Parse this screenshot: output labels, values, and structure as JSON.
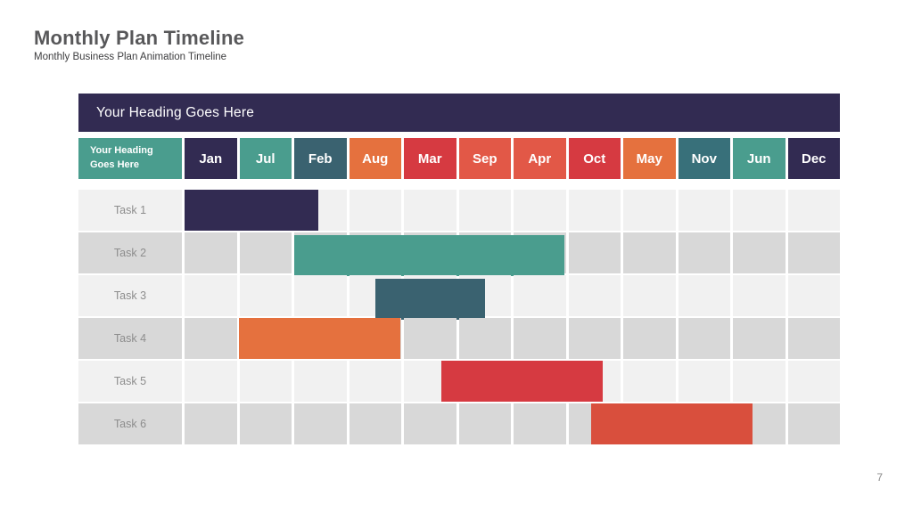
{
  "slide": {
    "title": "Monthly Plan Timeline",
    "subtitle": "Monthly Business Plan Animation Timeline",
    "page_number": "7"
  },
  "colors": {
    "navy": "#322b52",
    "teal": "#4a9d8e",
    "slate_blue": "#3a6270",
    "dark_teal": "#38707a",
    "orange": "#e5713e",
    "red": "#d63a41",
    "orange_red": "#e25847",
    "bar_orange_red": "#d94f3d",
    "row_odd_bg": "#f1f1f1",
    "row_even_bg": "#d8d8d8",
    "title_text": "#58585a",
    "task_label_text": "#8d8d8d"
  },
  "table": {
    "heading": "Your Heading Goes Here",
    "corner": {
      "line1": "Your Heading",
      "line2": "Goes Here",
      "bg": "#4a9d8e"
    },
    "months": [
      {
        "label": "Jan",
        "bg": "#322b52"
      },
      {
        "label": "Jul",
        "bg": "#4a9d8e"
      },
      {
        "label": "Feb",
        "bg": "#3a6270"
      },
      {
        "label": "Aug",
        "bg": "#e5713e"
      },
      {
        "label": "Mar",
        "bg": "#d63a41"
      },
      {
        "label": "Sep",
        "bg": "#e25847"
      },
      {
        "label": "Apr",
        "bg": "#e25847"
      },
      {
        "label": "Oct",
        "bg": "#d63a41"
      },
      {
        "label": "May",
        "bg": "#e5713e"
      },
      {
        "label": "Nov",
        "bg": "#38707a"
      },
      {
        "label": "Jun",
        "bg": "#4a9d8e"
      },
      {
        "label": "Dec",
        "bg": "#322b52"
      }
    ],
    "row_colors": {
      "odd": "#f1f1f1",
      "even": "#d8d8d8"
    },
    "tasks": [
      {
        "label": "Task 1",
        "start": 0,
        "end": 2.5,
        "color": "#322b52",
        "dy": 0
      },
      {
        "label": "Task 2",
        "start": 2,
        "end": 7,
        "color": "#4a9d8e",
        "dy": 3
      },
      {
        "label": "Task 3",
        "start": 3.5,
        "end": 5.55,
        "color": "#3a6270",
        "dy": 4
      },
      {
        "label": "Task 4",
        "start": 1,
        "end": 4,
        "color": "#e5713e",
        "dy": 0
      },
      {
        "label": "Task 5",
        "start": 4.7,
        "end": 7.7,
        "color": "#d63a41",
        "dy": 0
      },
      {
        "label": "Task 6",
        "start": 7.45,
        "end": 10.45,
        "color": "#d94f3d",
        "dy": 0
      }
    ]
  },
  "chart_data": {
    "type": "bar",
    "subtype": "gantt_timeline",
    "title": "Your Heading Goes Here",
    "column_header_order": [
      "Jan",
      "Jul",
      "Feb",
      "Aug",
      "Mar",
      "Sep",
      "Apr",
      "Oct",
      "May",
      "Nov",
      "Jun",
      "Dec"
    ],
    "categories": [
      "Task 1",
      "Task 2",
      "Task 3",
      "Task 4",
      "Task 5",
      "Task 6"
    ],
    "series": [
      {
        "name": "Task 1",
        "start_column": 0,
        "end_column": 2.5,
        "span_columns": 2.5,
        "from": "start of Jan column",
        "to": "middle of Feb column",
        "color": "#322b52"
      },
      {
        "name": "Task 2",
        "start_column": 2,
        "end_column": 7,
        "span_columns": 5,
        "from": "start of Feb column",
        "to": "end of Apr column",
        "color": "#4a9d8e"
      },
      {
        "name": "Task 3",
        "start_column": 3.5,
        "end_column": 5.55,
        "span_columns": 2,
        "from": "middle of Aug column",
        "to": "middle of Sep column",
        "color": "#3a6270"
      },
      {
        "name": "Task 4",
        "start_column": 1,
        "end_column": 4,
        "span_columns": 3,
        "from": "start of Jul column",
        "to": "end of Aug column",
        "color": "#e5713e"
      },
      {
        "name": "Task 5",
        "start_column": 4.7,
        "end_column": 7.7,
        "span_columns": 3,
        "from": "70% into Mar column",
        "to": "70% into Oct column",
        "color": "#d63a41"
      },
      {
        "name": "Task 6",
        "start_column": 7.45,
        "end_column": 10.45,
        "span_columns": 3,
        "from": "middle of Oct column",
        "to": "middle of Jun column",
        "color": "#d94f3d"
      }
    ],
    "legend_position": "none",
    "grid": true,
    "notes": "Gantt-style monthly plan timeline; alternating light/dark gray task rows; white gaps act as gridlines between the 12 month columns."
  }
}
